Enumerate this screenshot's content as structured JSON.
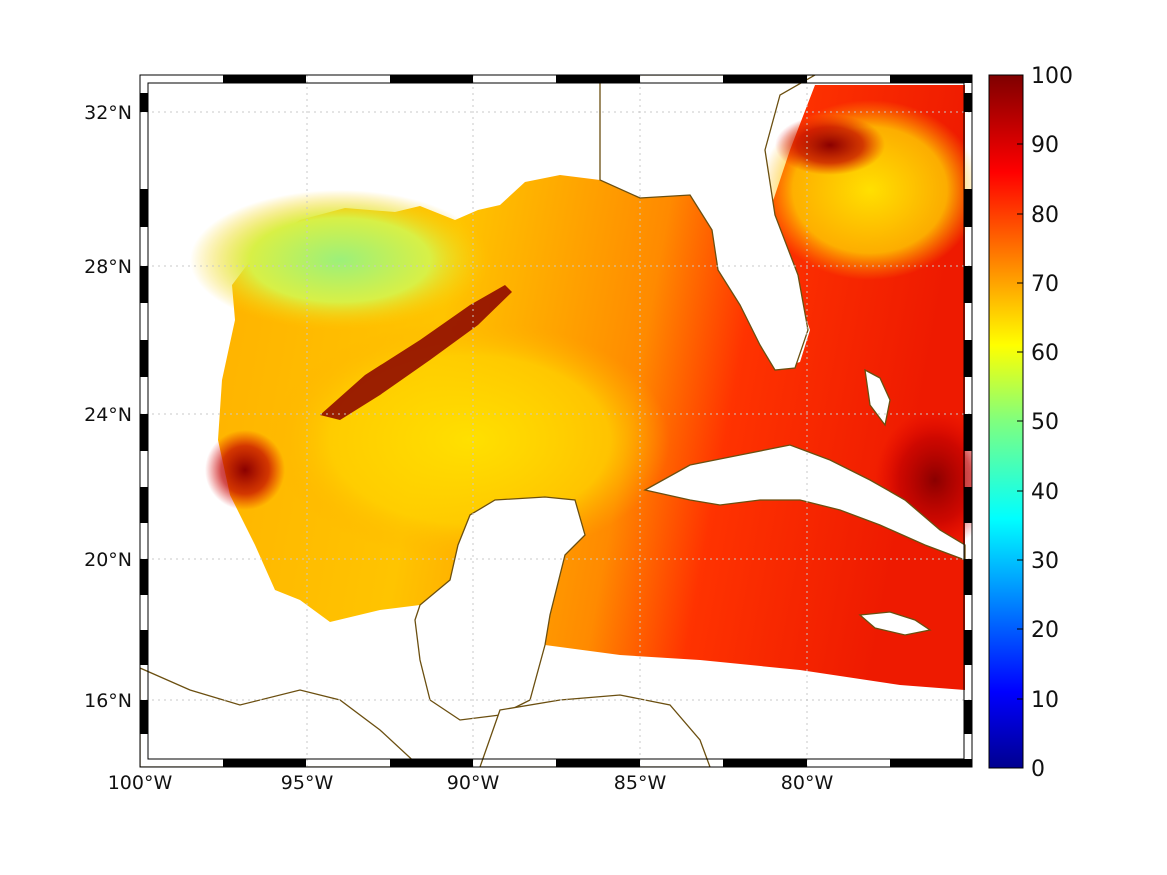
{
  "map": {
    "lon_range": [
      -100,
      -75
    ],
    "lat_range": [
      14,
      33
    ],
    "longitude_ticks": [
      {
        "value": -100,
        "label": "100°W"
      },
      {
        "value": -95,
        "label": "95°W"
      },
      {
        "value": -90,
        "label": "90°W"
      },
      {
        "value": -85,
        "label": "85°W"
      },
      {
        "value": -80,
        "label": "80°W"
      }
    ],
    "latitude_ticks": [
      {
        "value": 32,
        "label": "32°N"
      },
      {
        "value": 28,
        "label": "28°N"
      },
      {
        "value": 24,
        "label": "24°N"
      },
      {
        "value": 20,
        "label": "20°N"
      },
      {
        "value": 16,
        "label": "16°N"
      }
    ],
    "grid": "dotted",
    "frame": "black-white alternating border",
    "colors": {
      "coastline": "#6b4f10",
      "land": "#ffffff",
      "grid": "#c8c8c8"
    }
  },
  "colorbar": {
    "colormap": "jet",
    "range": [
      0,
      100
    ],
    "labels": [
      "0",
      "10",
      "20",
      "30",
      "40",
      "50",
      "60",
      "70",
      "80",
      "90",
      "100"
    ],
    "orientation": "vertical",
    "position": "right"
  }
}
